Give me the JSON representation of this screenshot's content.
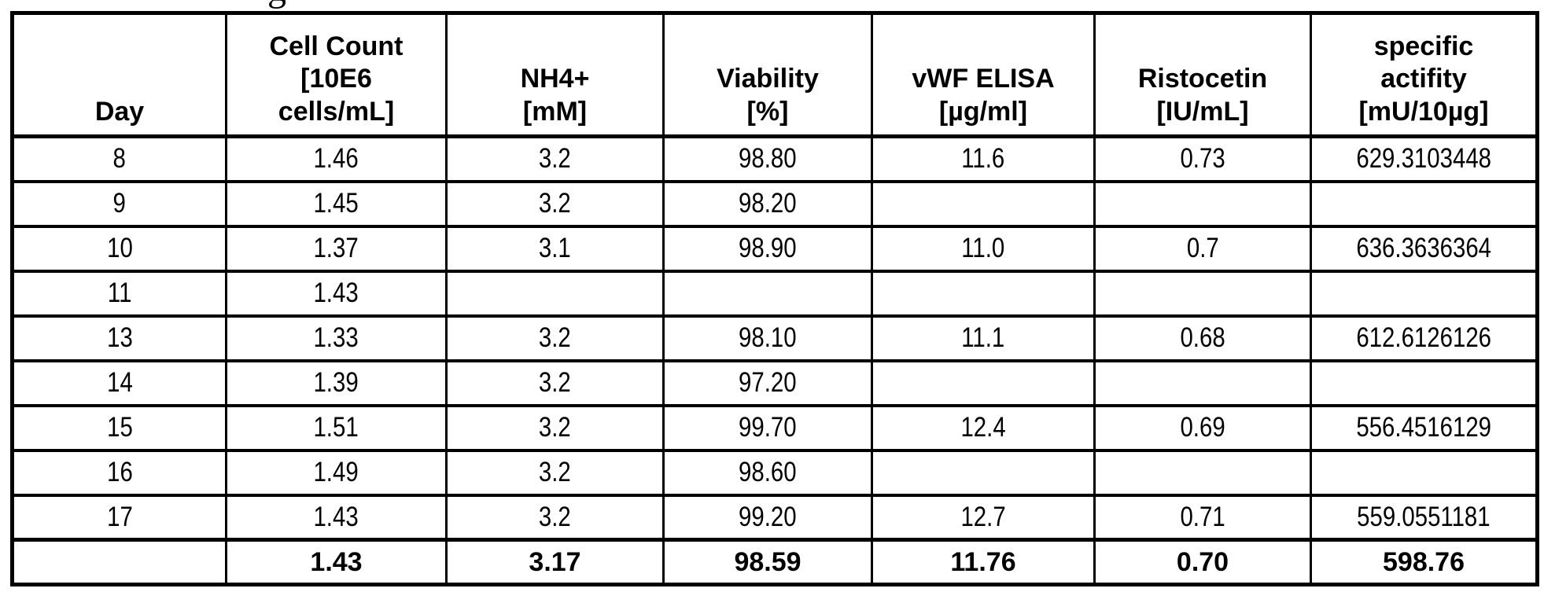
{
  "page": {
    "clipped_text_top": "g"
  },
  "table": {
    "headers": {
      "day": "Day",
      "cell_count": "Cell Count\n[10E6\ncells/mL]",
      "nh4": "NH4+\n[mM]",
      "viability": "Viability\n[%]",
      "vwf_elisa": "vWF ELISA\n[µg/ml]",
      "ristocetin": "Ristocetin\n[IU/mL]",
      "specific_activity": "specific\nactifity\n[mU/10µg]"
    },
    "rows": [
      {
        "cells": [
          "8",
          "1.46",
          "3.2",
          "98.80",
          "11.6",
          "0.73",
          "629.3103448"
        ]
      },
      {
        "cells": [
          "9",
          "1.45",
          "3.2",
          "98.20",
          "",
          "",
          ""
        ]
      },
      {
        "cells": [
          "10",
          "1.37",
          "3.1",
          "98.90",
          "11.0",
          "0.7",
          "636.3636364"
        ]
      },
      {
        "cells": [
          "11",
          "1.43",
          "",
          "",
          "",
          "",
          ""
        ]
      },
      {
        "cells": [
          "13",
          "1.33",
          "3.2",
          "98.10",
          "11.1",
          "0.68",
          "612.6126126"
        ]
      },
      {
        "cells": [
          "14",
          "1.39",
          "3.2",
          "97.20",
          "",
          "",
          ""
        ]
      },
      {
        "cells": [
          "15",
          "1.51",
          "3.2",
          "99.70",
          "12.4",
          "0.69",
          "556.4516129"
        ]
      },
      {
        "cells": [
          "16",
          "1.49",
          "3.2",
          "98.60",
          "",
          "",
          ""
        ]
      },
      {
        "cells": [
          "17",
          "1.43",
          "3.2",
          "99.20",
          "12.7",
          "0.71",
          "559.0551181"
        ]
      }
    ],
    "summary_row": {
      "cells": [
        "",
        "1.43",
        "3.17",
        "98.59",
        "11.76",
        "0.70",
        "598.76"
      ]
    }
  }
}
